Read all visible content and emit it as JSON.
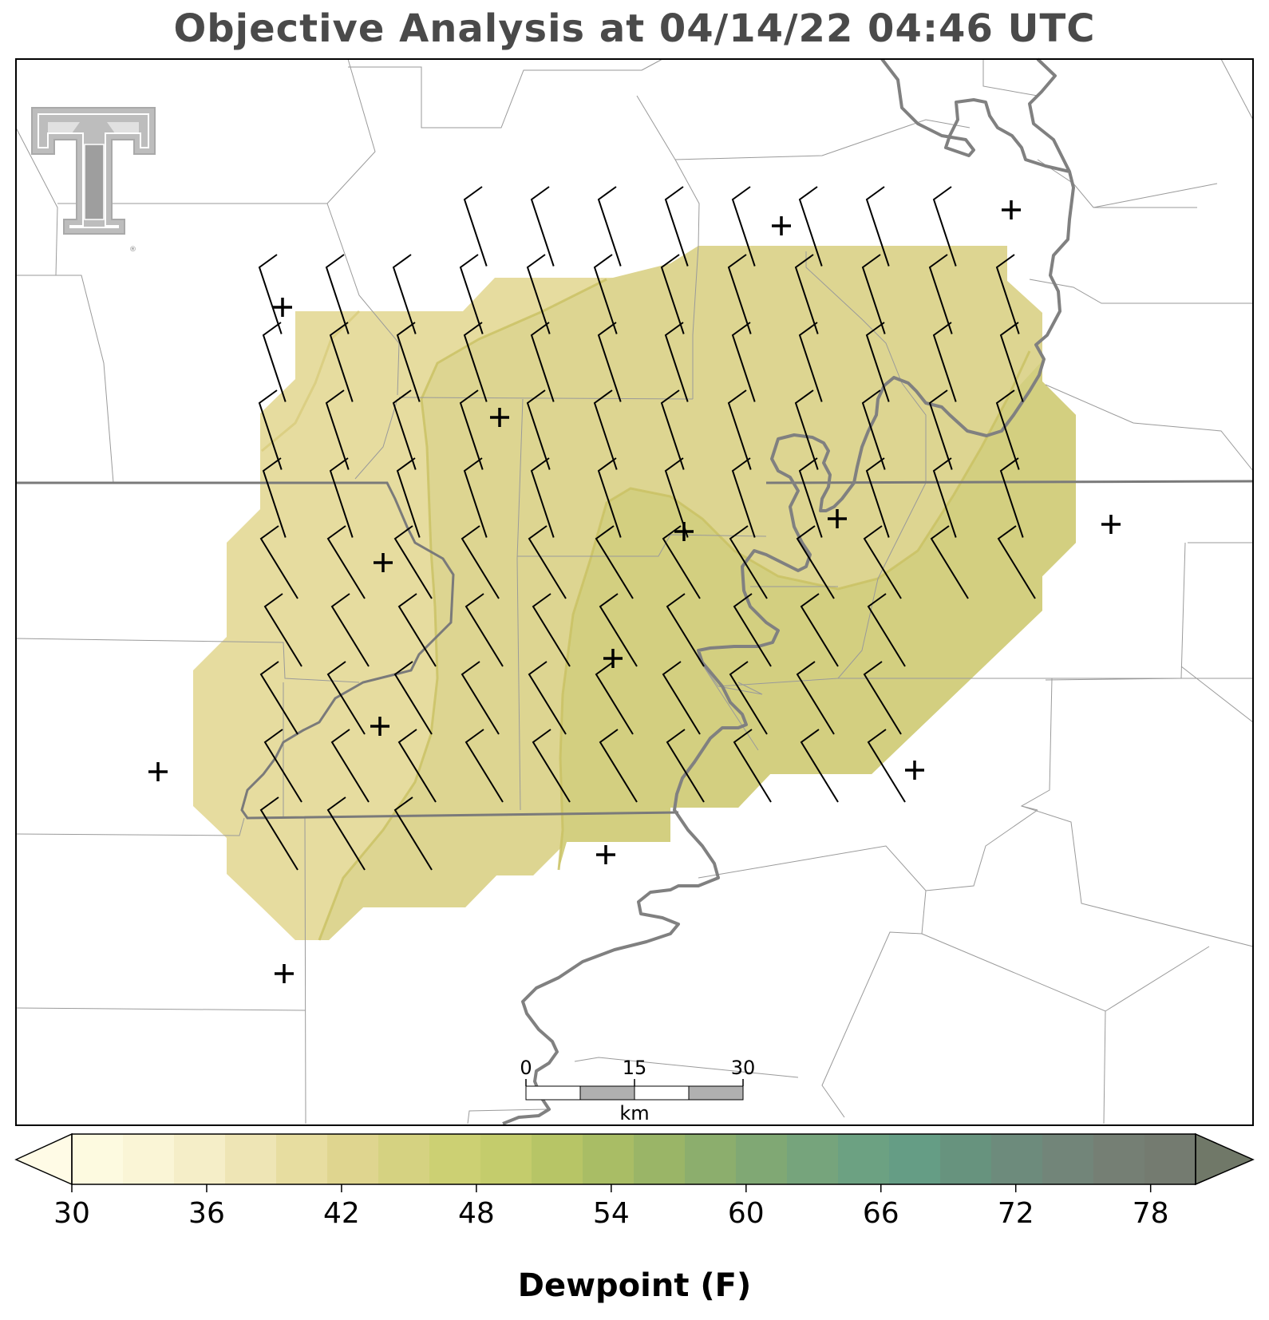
{
  "title": "Objective Analysis at 04/14/22 04:46 UTC",
  "logo": {
    "icon": "texas-tech-double-t-logo",
    "mark": "®"
  },
  "scale_bar": {
    "ticks": [
      "0",
      "15",
      "30"
    ],
    "unit": "km"
  },
  "colorbar": {
    "label": "Dewpoint (F)",
    "min": 30,
    "max": 80,
    "step": 2.5,
    "tick_values": [
      30,
      36,
      42,
      48,
      54,
      60,
      66,
      72,
      78
    ],
    "tick_labels": [
      "30",
      "36",
      "42",
      "48",
      "54",
      "60",
      "66",
      "72",
      "78"
    ],
    "colors": [
      "#fdfae0",
      "#faf5d6",
      "#f5eec8",
      "#eee5b5",
      "#e7dda0",
      "#dfd58f",
      "#d5d281",
      "#ccd073",
      "#c4cc6c",
      "#b7c566",
      "#a9bd65",
      "#9ab567",
      "#8cae6d",
      "#80a874",
      "#76a47c",
      "#6ca182",
      "#659d85",
      "#67937e",
      "#6d8b7c",
      "#728579",
      "#757f74",
      "#747b70"
    ],
    "under_color": "#fffbe6",
    "over_color": "#707868"
  },
  "map": {
    "field": "dewpoint",
    "field_colors": {
      "light": "#e5dba0",
      "mid": "#ddd591",
      "dark": "#d2cf80"
    },
    "station_marker": "+",
    "wind_barbs": "northerly-northwesterly, ~10 kt",
    "contour_color": "#c8c060"
  }
}
